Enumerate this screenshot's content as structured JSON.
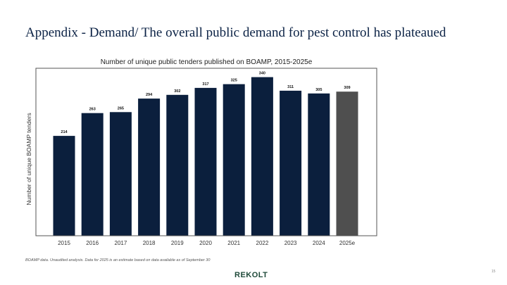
{
  "slide": {
    "title": "Appendix - Demand/ The overall public demand for pest control has plateaued",
    "footnote": "BOAMP data. Unaudited analysis. Data for 2025 is an estimate based on data available as of September 30",
    "logo": "REKOLT",
    "page_number": "15"
  },
  "chart_data": {
    "type": "bar",
    "title": "Number of unique public tenders published on BOAMP, 2015-2025e",
    "xlabel": "",
    "ylabel": "Number of unique BOAMP tenders",
    "categories": [
      "2015",
      "2016",
      "2017",
      "2018",
      "2019",
      "2020",
      "2021",
      "2022",
      "2023",
      "2024",
      "2025e"
    ],
    "values": [
      214,
      263,
      265,
      294,
      302,
      317,
      325,
      340,
      311,
      305,
      309
    ],
    "estimate_categories": [
      "2025e"
    ],
    "ylim": [
      0,
      350
    ],
    "grid": false,
    "legend": "none",
    "colors": {
      "actual": "#0b1f3d",
      "estimate": "#4f4f4f",
      "frame": "#555555"
    }
  }
}
